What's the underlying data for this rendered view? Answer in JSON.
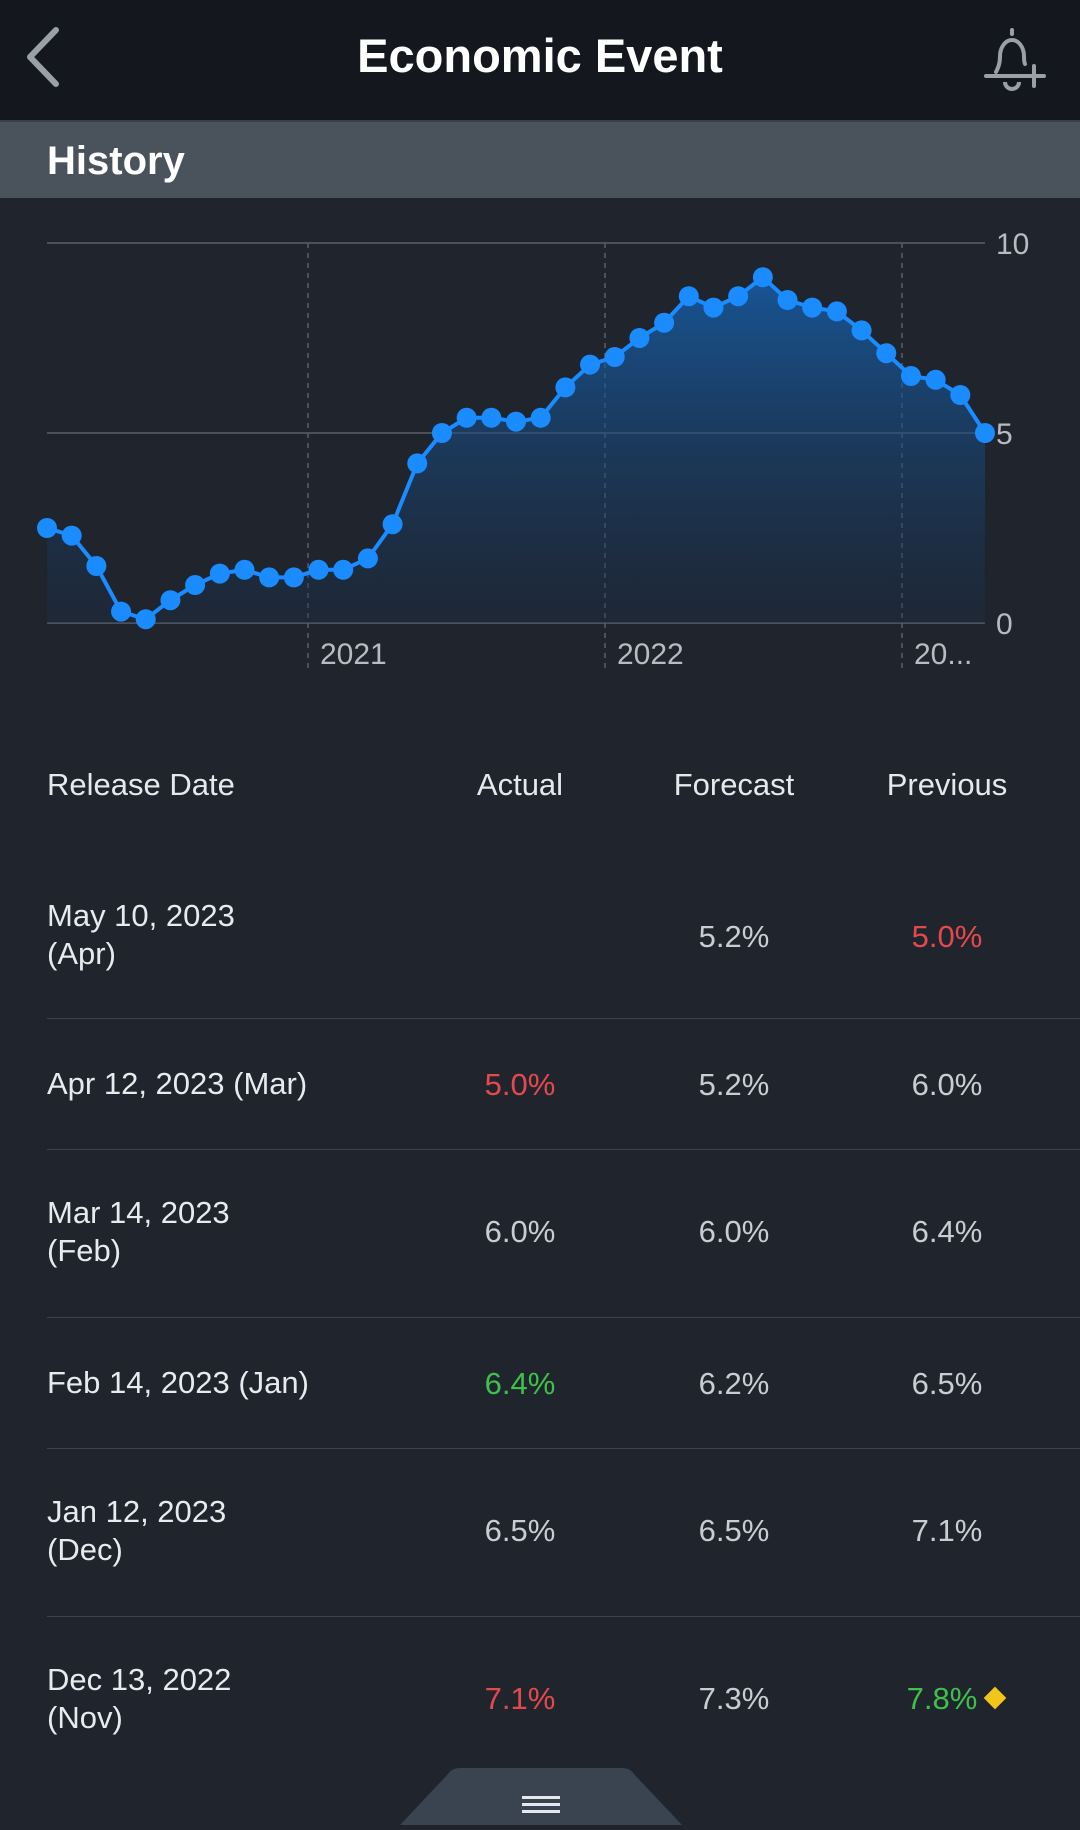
{
  "header": {
    "title": "Economic Event"
  },
  "section": {
    "title": "History"
  },
  "chart_data": {
    "type": "area",
    "y_ticks": [
      "10",
      "5",
      "0"
    ],
    "x_ticks": [
      "2021",
      "2022",
      "20..."
    ],
    "ylim": [
      0,
      10
    ],
    "grid": true,
    "series": [
      {
        "values": [
          2.5,
          2.3,
          1.5,
          0.3,
          0.1,
          0.6,
          1.0,
          1.3,
          1.4,
          1.2,
          1.2,
          1.4,
          1.4,
          1.7,
          2.6,
          4.2,
          5.0,
          5.4,
          5.4,
          5.3,
          5.4,
          6.2,
          6.8,
          7.0,
          7.5,
          7.9,
          8.6,
          8.3,
          8.6,
          9.1,
          8.5,
          8.3,
          8.2,
          7.7,
          7.1,
          6.5,
          6.4,
          6.0,
          5.0
        ]
      }
    ]
  },
  "table": {
    "headers": [
      "Release Date",
      "Actual",
      "Forecast",
      "Previous"
    ],
    "rows": [
      {
        "date_line1": "May 10, 2023",
        "date_line2": "(Apr)",
        "actual": "",
        "forecast": "5.2%",
        "previous": "5.0%",
        "actual_color": "neu",
        "previous_color": "red"
      },
      {
        "date_line1": "Apr 12, 2023 (Mar)",
        "date_line2": "",
        "actual": "5.0%",
        "forecast": "5.2%",
        "previous": "6.0%",
        "actual_color": "red",
        "previous_color": "neu"
      },
      {
        "date_line1": "Mar 14, 2023",
        "date_line2": "(Feb)",
        "actual": "6.0%",
        "forecast": "6.0%",
        "previous": "6.4%",
        "actual_color": "neu",
        "previous_color": "neu"
      },
      {
        "date_line1": "Feb 14, 2023 (Jan)",
        "date_line2": "",
        "actual": "6.4%",
        "forecast": "6.2%",
        "previous": "6.5%",
        "actual_color": "green",
        "previous_color": "neu"
      },
      {
        "date_line1": "Jan 12, 2023",
        "date_line2": "(Dec)",
        "actual": "6.5%",
        "forecast": "6.5%",
        "previous": "7.1%",
        "actual_color": "neu",
        "previous_color": "neu"
      },
      {
        "date_line1": "Dec 13, 2022",
        "date_line2": "(Nov)",
        "actual": "7.1%",
        "forecast": "7.3%",
        "previous": "7.8%",
        "actual_color": "red",
        "previous_color": "green"
      }
    ]
  },
  "colors": {
    "accent": "#1a8cff",
    "negative": "#e5484d",
    "positive": "#3ec04a",
    "revised_marker": "#f2c51b"
  },
  "icons": {
    "back": "chevron-left-icon",
    "alert": "bell-plus-icon",
    "handle": "menu-handle-icon"
  }
}
